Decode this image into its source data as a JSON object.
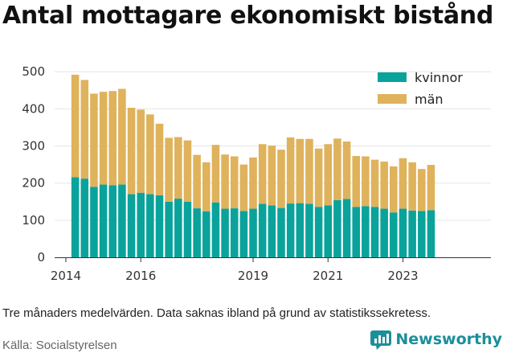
{
  "title": "Antal mottagare ekonomiskt bistånd",
  "note": "Tre månaders medelvärden. Data saknas ibland på grund av statistikssekretess.",
  "source": "Källa: Socialstyrelsen",
  "brand": "Newsworthy",
  "colors": {
    "kvinnor": "#0aa39b",
    "man": "#dfb25c",
    "brand": "#1b8f9a"
  },
  "chart_data": {
    "type": "bar",
    "stacked": true,
    "ylim": [
      0,
      520
    ],
    "yticks": [
      0,
      100,
      200,
      300,
      400,
      500
    ],
    "xticks": [
      {
        "label": "2014",
        "pos": 2014.0
      },
      {
        "label": "2016",
        "pos": 2016.0
      },
      {
        "label": "2019",
        "pos": 2019.0
      },
      {
        "label": "2021",
        "pos": 2021.0
      },
      {
        "label": "2023",
        "pos": 2023.0
      }
    ],
    "xlim": [
      2013.7,
      2025.35
    ],
    "legend_position": "top-right",
    "x": [
      2014.25,
      2014.5,
      2014.75,
      2015.0,
      2015.25,
      2015.5,
      2015.75,
      2016.0,
      2016.25,
      2016.5,
      2016.75,
      2017.0,
      2017.25,
      2017.5,
      2017.75,
      2018.0,
      2018.25,
      2018.5,
      2018.75,
      2019.0,
      2019.25,
      2019.5,
      2019.75,
      2020.0,
      2020.25,
      2020.5,
      2020.75,
      2021.0,
      2021.25,
      2021.5,
      2021.75,
      2022.0,
      2022.25,
      2022.5,
      2022.75,
      2023.0,
      2023.25,
      2023.5,
      2023.75
    ],
    "series": [
      {
        "name": "kvinnor",
        "values": [
          216,
          212,
          190,
          196,
          194,
          196,
          170,
          174,
          170,
          167,
          150,
          158,
          150,
          132,
          124,
          148,
          131,
          132,
          125,
          131,
          144,
          140,
          133,
          145,
          146,
          144,
          136,
          140,
          154,
          157,
          136,
          138,
          136,
          131,
          121,
          131,
          126,
          125,
          127
        ]
      },
      {
        "name": "män",
        "values": [
          276,
          266,
          251,
          250,
          254,
          258,
          233,
          224,
          215,
          193,
          172,
          166,
          165,
          144,
          132,
          155,
          146,
          140,
          125,
          138,
          161,
          161,
          157,
          178,
          173,
          175,
          157,
          165,
          166,
          155,
          137,
          134,
          127,
          127,
          124,
          136,
          130,
          113,
          122
        ]
      }
    ]
  }
}
